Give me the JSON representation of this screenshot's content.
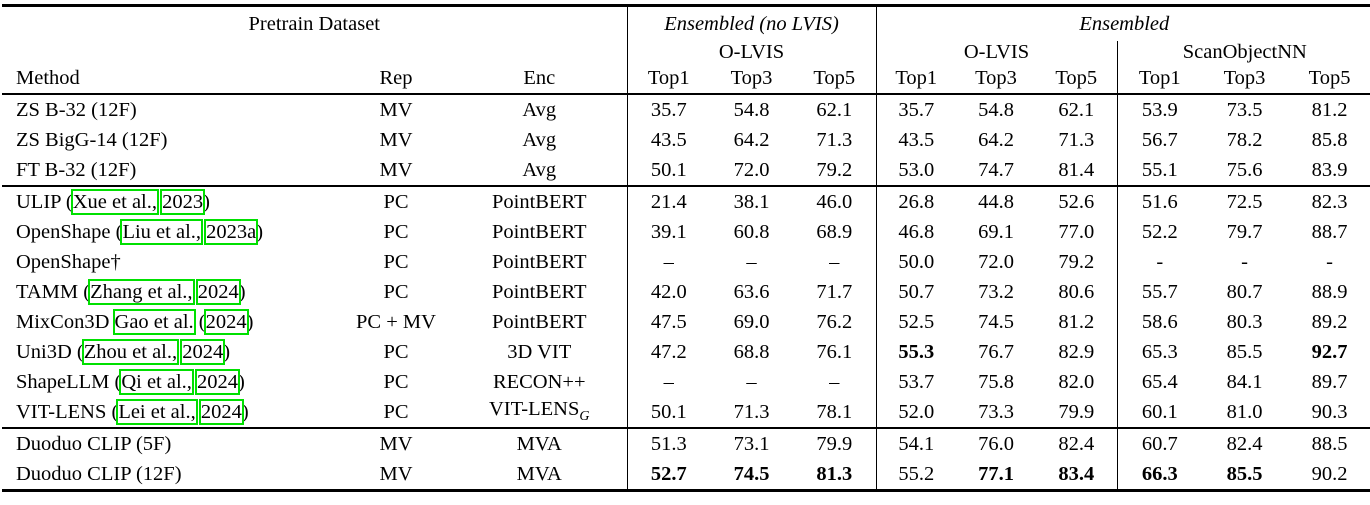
{
  "colors": {
    "citation_box_color": "#00e000",
    "rule_color": "#000000",
    "background": "#ffffff"
  },
  "table": {
    "top_headers": [
      {
        "label": "Pretrain Dataset",
        "italic": false
      },
      {
        "label": "Ensembled (no LVIS)",
        "italic": true
      },
      {
        "label": "Ensembled",
        "italic": true
      }
    ],
    "dataset_headers": [
      "O-LVIS",
      "O-LVIS",
      "ScanObjectNN"
    ],
    "column_headers": {
      "method": "Method",
      "rep": "Rep",
      "enc": "Enc",
      "metrics": [
        "Top1",
        "Top3",
        "Top5"
      ]
    },
    "groups": [
      {
        "rows": [
          {
            "method": [
              {
                "t": "ZS B-32 (12F)"
              }
            ],
            "rep": "MV",
            "enc": [
              {
                "t": "Avg"
              }
            ],
            "values": [
              {
                "v": "35.7"
              },
              {
                "v": "54.8"
              },
              {
                "v": "62.1"
              },
              {
                "v": "35.7"
              },
              {
                "v": "54.8"
              },
              {
                "v": "62.1"
              },
              {
                "v": "53.9"
              },
              {
                "v": "73.5"
              },
              {
                "v": "81.2"
              }
            ]
          },
          {
            "method": [
              {
                "t": "ZS BigG-14 (12F)"
              }
            ],
            "rep": "MV",
            "enc": [
              {
                "t": "Avg"
              }
            ],
            "values": [
              {
                "v": "43.5"
              },
              {
                "v": "64.2"
              },
              {
                "v": "71.3"
              },
              {
                "v": "43.5"
              },
              {
                "v": "64.2"
              },
              {
                "v": "71.3"
              },
              {
                "v": "56.7"
              },
              {
                "v": "78.2"
              },
              {
                "v": "85.8"
              }
            ]
          },
          {
            "method": [
              {
                "t": "FT B-32 (12F)"
              }
            ],
            "rep": "MV",
            "enc": [
              {
                "t": "Avg"
              }
            ],
            "values": [
              {
                "v": "50.1"
              },
              {
                "v": "72.0"
              },
              {
                "v": "79.2"
              },
              {
                "v": "53.0"
              },
              {
                "v": "74.7"
              },
              {
                "v": "81.4"
              },
              {
                "v": "55.1"
              },
              {
                "v": "75.6"
              },
              {
                "v": "83.9"
              }
            ]
          }
        ]
      },
      {
        "rows": [
          {
            "method": [
              {
                "t": "ULIP ("
              },
              {
                "t": "Xue et al.,",
                "box": true
              },
              {
                "t": " "
              },
              {
                "t": "2023",
                "box": true
              },
              {
                "t": ")"
              }
            ],
            "rep": "PC",
            "enc": [
              {
                "t": "PointBERT"
              }
            ],
            "values": [
              {
                "v": "21.4"
              },
              {
                "v": "38.1"
              },
              {
                "v": "46.0"
              },
              {
                "v": "26.8"
              },
              {
                "v": "44.8"
              },
              {
                "v": "52.6"
              },
              {
                "v": "51.6"
              },
              {
                "v": "72.5"
              },
              {
                "v": "82.3"
              }
            ]
          },
          {
            "method": [
              {
                "t": "OpenShape ("
              },
              {
                "t": "Liu et al.,",
                "box": true
              },
              {
                "t": " "
              },
              {
                "t": "2023a",
                "box": true
              },
              {
                "t": ")"
              }
            ],
            "rep": "PC",
            "enc": [
              {
                "t": "PointBERT"
              }
            ],
            "values": [
              {
                "v": "39.1"
              },
              {
                "v": "60.8"
              },
              {
                "v": "68.9"
              },
              {
                "v": "46.8"
              },
              {
                "v": "69.1"
              },
              {
                "v": "77.0"
              },
              {
                "v": "52.2"
              },
              {
                "v": "79.7"
              },
              {
                "v": "88.7"
              }
            ]
          },
          {
            "method": [
              {
                "t": "OpenShape†"
              }
            ],
            "rep": "PC",
            "enc": [
              {
                "t": "PointBERT"
              }
            ],
            "values": [
              {
                "v": "–"
              },
              {
                "v": "–"
              },
              {
                "v": "–"
              },
              {
                "v": "50.0"
              },
              {
                "v": "72.0"
              },
              {
                "v": "79.2"
              },
              {
                "v": "-"
              },
              {
                "v": "-"
              },
              {
                "v": "-"
              }
            ]
          },
          {
            "method": [
              {
                "t": "TAMM ("
              },
              {
                "t": "Zhang et al.,",
                "box": true
              },
              {
                "t": " "
              },
              {
                "t": "2024",
                "box": true
              },
              {
                "t": ")"
              }
            ],
            "rep": "PC",
            "enc": [
              {
                "t": "PointBERT"
              }
            ],
            "values": [
              {
                "v": "42.0"
              },
              {
                "v": "63.6"
              },
              {
                "v": "71.7"
              },
              {
                "v": "50.7"
              },
              {
                "v": "73.2"
              },
              {
                "v": "80.6"
              },
              {
                "v": "55.7"
              },
              {
                "v": "80.7"
              },
              {
                "v": "88.9"
              }
            ]
          },
          {
            "method": [
              {
                "t": "MixCon3D "
              },
              {
                "t": "Gao et al.",
                "box": true
              },
              {
                "t": " ("
              },
              {
                "t": "2024",
                "box": true
              },
              {
                "t": ")"
              }
            ],
            "rep": "PC + MV",
            "enc": [
              {
                "t": "PointBERT"
              }
            ],
            "values": [
              {
                "v": "47.5"
              },
              {
                "v": "69.0"
              },
              {
                "v": "76.2"
              },
              {
                "v": "52.5"
              },
              {
                "v": "74.5"
              },
              {
                "v": "81.2"
              },
              {
                "v": "58.6"
              },
              {
                "v": "80.3"
              },
              {
                "v": "89.2"
              }
            ]
          },
          {
            "method": [
              {
                "t": "Uni3D ("
              },
              {
                "t": "Zhou et al.,",
                "box": true
              },
              {
                "t": " "
              },
              {
                "t": "2024",
                "box": true
              },
              {
                "t": ")"
              }
            ],
            "rep": "PC",
            "enc": [
              {
                "t": "3D VIT"
              }
            ],
            "values": [
              {
                "v": "47.2"
              },
              {
                "v": "68.8"
              },
              {
                "v": "76.1"
              },
              {
                "v": "55.3",
                "b": true
              },
              {
                "v": "76.7"
              },
              {
                "v": "82.9"
              },
              {
                "v": "65.3"
              },
              {
                "v": "85.5"
              },
              {
                "v": "92.7",
                "b": true
              }
            ]
          },
          {
            "method": [
              {
                "t": "ShapeLLM ("
              },
              {
                "t": "Qi et al.,",
                "box": true
              },
              {
                "t": " "
              },
              {
                "t": "2024",
                "box": true
              },
              {
                "t": ")"
              }
            ],
            "rep": "PC",
            "enc": [
              {
                "t": "RECON++"
              }
            ],
            "values": [
              {
                "v": "–"
              },
              {
                "v": "–"
              },
              {
                "v": "–"
              },
              {
                "v": "53.7"
              },
              {
                "v": "75.8"
              },
              {
                "v": "82.0"
              },
              {
                "v": "65.4"
              },
              {
                "v": "84.1"
              },
              {
                "v": "89.7"
              }
            ]
          },
          {
            "method": [
              {
                "t": "VIT-LENS ("
              },
              {
                "t": "Lei et al.,",
                "box": true
              },
              {
                "t": " "
              },
              {
                "t": "2024",
                "box": true
              },
              {
                "t": ")"
              }
            ],
            "rep": "PC",
            "enc": [
              {
                "t": "VIT-LENS"
              },
              {
                "t": "G",
                "sub": true
              }
            ],
            "values": [
              {
                "v": "50.1"
              },
              {
                "v": "71.3"
              },
              {
                "v": "78.1"
              },
              {
                "v": "52.0"
              },
              {
                "v": "73.3"
              },
              {
                "v": "79.9"
              },
              {
                "v": "60.1"
              },
              {
                "v": "81.0"
              },
              {
                "v": "90.3"
              }
            ]
          }
        ]
      },
      {
        "rows": [
          {
            "method": [
              {
                "t": "Duoduo CLIP (5F)"
              }
            ],
            "rep": "MV",
            "enc": [
              {
                "t": "MVA"
              }
            ],
            "values": [
              {
                "v": "51.3"
              },
              {
                "v": "73.1"
              },
              {
                "v": "79.9"
              },
              {
                "v": "54.1"
              },
              {
                "v": "76.0"
              },
              {
                "v": "82.4"
              },
              {
                "v": "60.7"
              },
              {
                "v": "82.4"
              },
              {
                "v": "88.5"
              }
            ]
          },
          {
            "method": [
              {
                "t": "Duoduo CLIP (12F)"
              }
            ],
            "rep": "MV",
            "enc": [
              {
                "t": "MVA"
              }
            ],
            "values": [
              {
                "v": "52.7",
                "b": true
              },
              {
                "v": "74.5",
                "b": true
              },
              {
                "v": "81.3",
                "b": true
              },
              {
                "v": "55.2"
              },
              {
                "v": "77.1",
                "b": true
              },
              {
                "v": "83.4",
                "b": true
              },
              {
                "v": "66.3",
                "b": true
              },
              {
                "v": "85.5",
                "b": true
              },
              {
                "v": "90.2"
              }
            ]
          }
        ]
      }
    ]
  }
}
